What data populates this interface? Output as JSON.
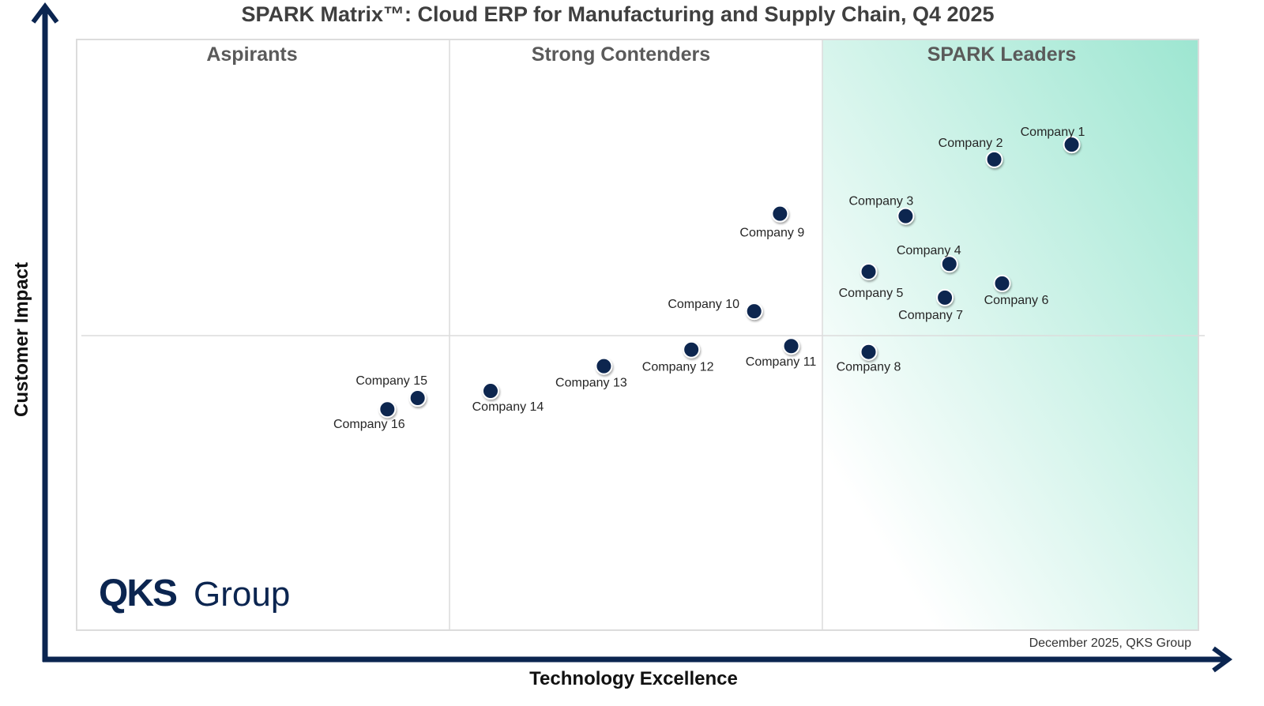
{
  "chart_data": {
    "type": "scatter",
    "title": "SPARK Matrix™: Cloud ERP for Manufacturing and Supply Chain, Q4 2025",
    "xlabel": "Technology Excellence",
    "ylabel": "Customer Impact",
    "xlim": [
      0,
      100
    ],
    "ylim": [
      0,
      100
    ],
    "grid": false,
    "quadrants": [
      "Aspirants",
      "Strong Contenders",
      "SPARK Leaders"
    ],
    "points": [
      {
        "name": "Company 1",
        "x": 88.7,
        "y": 82.2
      },
      {
        "name": "Company 2",
        "x": 81.8,
        "y": 79.7
      },
      {
        "name": "Company 3",
        "x": 73.9,
        "y": 70.1
      },
      {
        "name": "Company 4",
        "x": 77.8,
        "y": 62.0
      },
      {
        "name": "Company 5",
        "x": 70.6,
        "y": 60.7
      },
      {
        "name": "Company 6",
        "x": 82.5,
        "y": 58.7
      },
      {
        "name": "Company 7",
        "x": 77.4,
        "y": 56.3
      },
      {
        "name": "Company 8",
        "x": 70.6,
        "y": 47.1
      },
      {
        "name": "Company 9",
        "x": 62.7,
        "y": 70.5
      },
      {
        "name": "Company 10",
        "x": 60.4,
        "y": 54.0
      },
      {
        "name": "Company 11",
        "x": 63.7,
        "y": 48.1
      },
      {
        "name": "Company 12",
        "x": 54.8,
        "y": 47.5
      },
      {
        "name": "Company 13",
        "x": 47.0,
        "y": 44.7
      },
      {
        "name": "Company 14",
        "x": 36.9,
        "y": 40.5
      },
      {
        "name": "Company 15",
        "x": 30.4,
        "y": 39.3
      },
      {
        "name": "Company 16",
        "x": 27.7,
        "y": 37.4
      }
    ],
    "colors": {
      "point": "#0b2550",
      "axis": "#0b2550",
      "leaders_gradient": "#9de6d1"
    }
  },
  "footer": "December 2025, QKS Group",
  "logo": {
    "bold": "QKS",
    "light": "Group"
  }
}
